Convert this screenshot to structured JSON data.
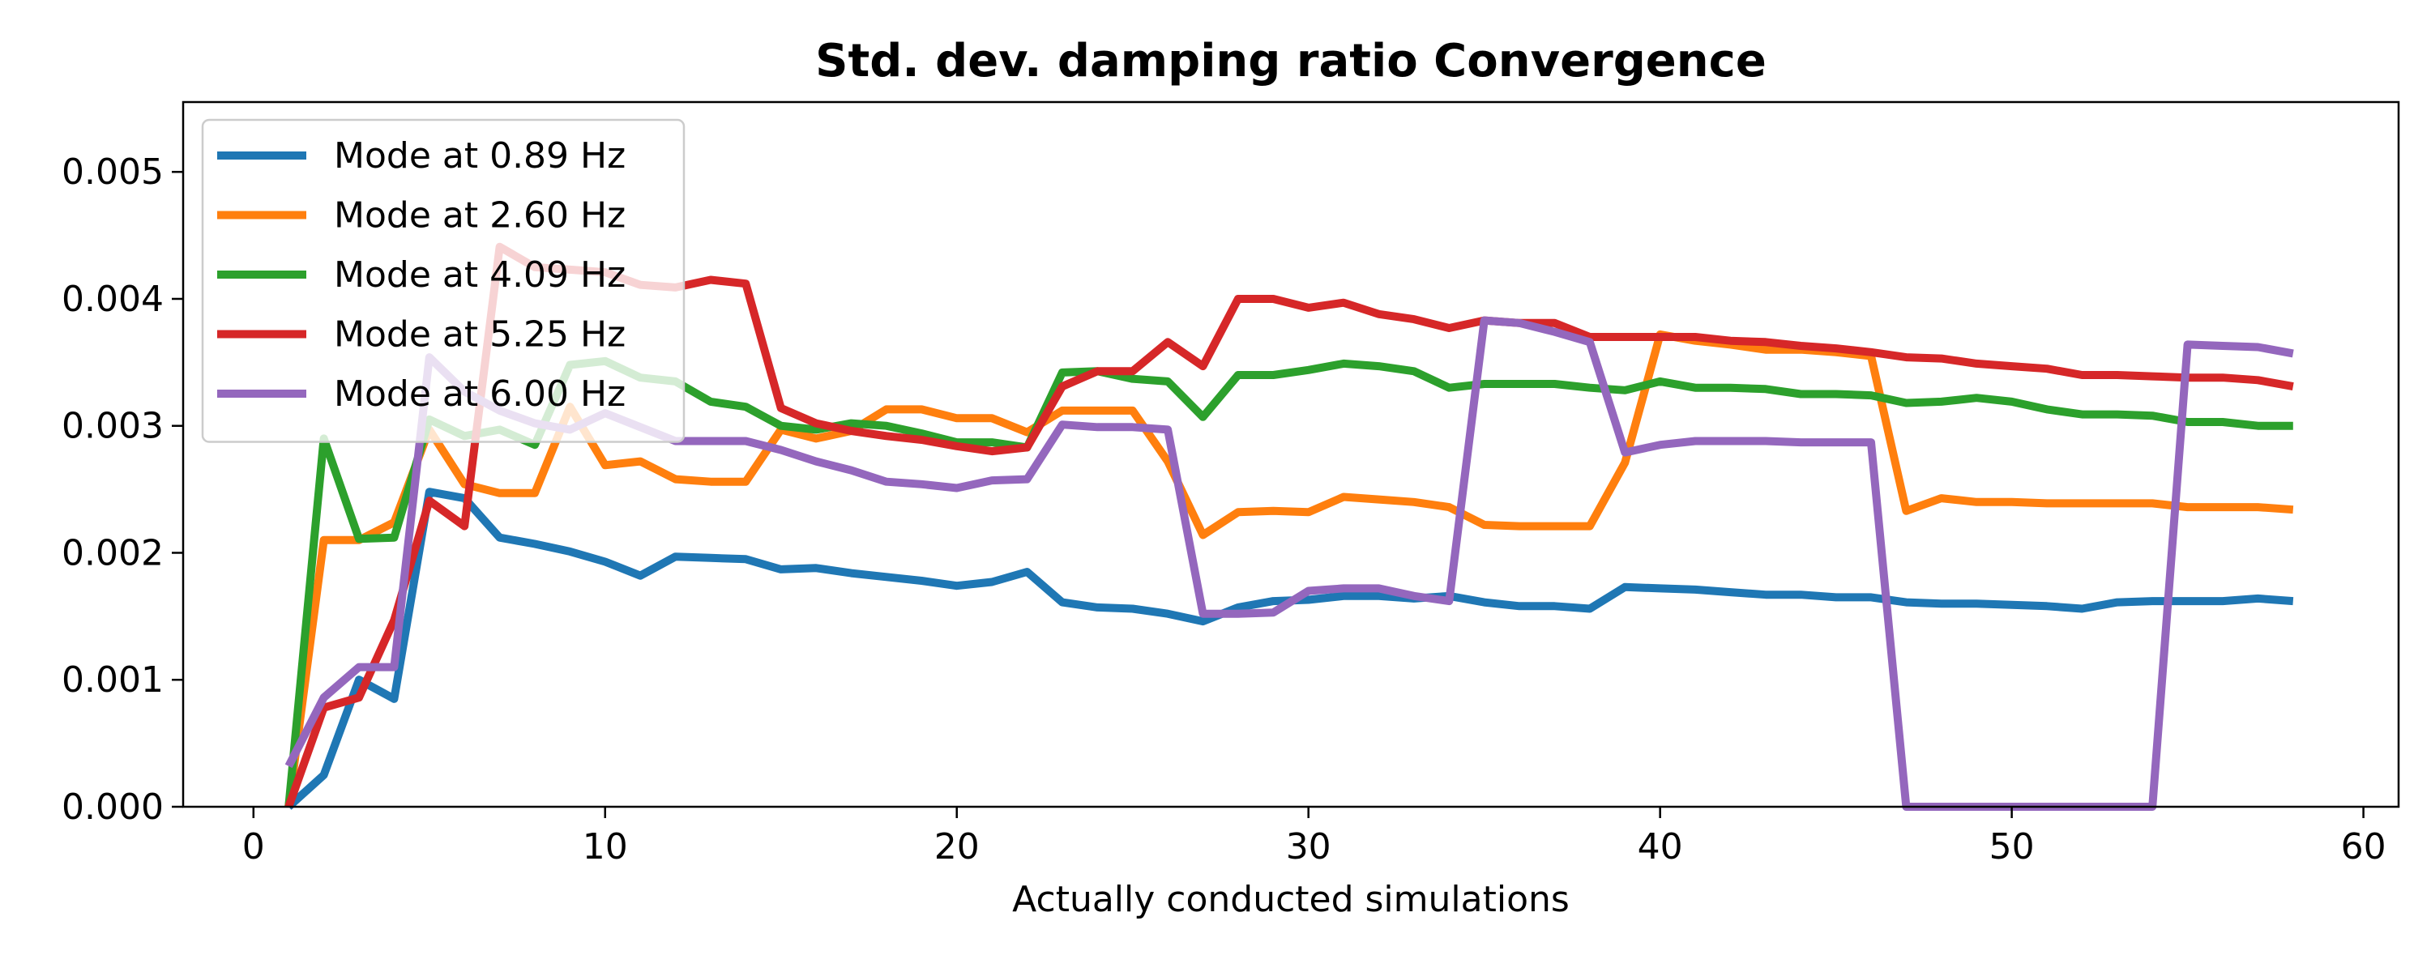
{
  "chart_data": {
    "type": "line",
    "title": "Std. dev. damping ratio Convergence",
    "xlabel": "Actually conducted simulations",
    "ylabel": "",
    "xlim": [
      -2,
      61
    ],
    "ylim": [
      0,
      0.00555
    ],
    "xticks": [
      0,
      10,
      20,
      30,
      40,
      50,
      60
    ],
    "yticks": [
      0.0,
      0.001,
      0.002,
      0.003,
      0.004,
      0.005
    ],
    "ytick_labels": [
      "0.000",
      "0.001",
      "0.002",
      "0.003",
      "0.004",
      "0.005"
    ],
    "legend_position": "top-left",
    "grid": false,
    "x": [
      1,
      2,
      3,
      4,
      5,
      6,
      7,
      8,
      9,
      10,
      11,
      12,
      13,
      14,
      15,
      16,
      17,
      18,
      19,
      20,
      21,
      22,
      23,
      24,
      25,
      26,
      27,
      28,
      29,
      30,
      31,
      32,
      33,
      34,
      35,
      36,
      37,
      38,
      39,
      40,
      41,
      42,
      43,
      44,
      45,
      46,
      47,
      48,
      49,
      50,
      51,
      52,
      53,
      54,
      55,
      56,
      57,
      58
    ],
    "series": [
      {
        "name": "Mode at 0.89 Hz",
        "color": "#1f77b4",
        "values": [
          0.0,
          0.00025,
          0.001,
          0.00085,
          0.00248,
          0.00243,
          0.00212,
          0.00207,
          0.00201,
          0.00193,
          0.00182,
          0.00197,
          0.00196,
          0.00195,
          0.00187,
          0.00188,
          0.00184,
          0.00181,
          0.00178,
          0.00174,
          0.00177,
          0.00185,
          0.00161,
          0.00157,
          0.00156,
          0.00152,
          0.00146,
          0.00157,
          0.00162,
          0.00163,
          0.00166,
          0.00166,
          0.00164,
          0.00166,
          0.00161,
          0.00158,
          0.00158,
          0.00156,
          0.00173,
          0.00172,
          0.00171,
          0.00169,
          0.00167,
          0.00167,
          0.00165,
          0.00165,
          0.00161,
          0.0016,
          0.0016,
          0.00159,
          0.00158,
          0.00156,
          0.00161,
          0.00162,
          0.00162,
          0.00162,
          0.00164,
          0.00162
        ]
      },
      {
        "name": "Mode at 2.60 Hz",
        "color": "#ff7f0e",
        "values": [
          0.0,
          0.0021,
          0.0021,
          0.00224,
          0.00297,
          0.00254,
          0.00247,
          0.00247,
          0.00315,
          0.00269,
          0.00272,
          0.00258,
          0.00256,
          0.00256,
          0.00297,
          0.0029,
          0.00296,
          0.00313,
          0.00313,
          0.00306,
          0.00306,
          0.00295,
          0.00312,
          0.00312,
          0.00312,
          0.00272,
          0.00214,
          0.00232,
          0.00233,
          0.00232,
          0.00244,
          0.00242,
          0.0024,
          0.00236,
          0.00222,
          0.00221,
          0.00221,
          0.00221,
          0.00271,
          0.00372,
          0.00367,
          0.00364,
          0.0036,
          0.0036,
          0.00358,
          0.00355,
          0.00233,
          0.00243,
          0.0024,
          0.0024,
          0.00239,
          0.00239,
          0.00239,
          0.00239,
          0.00236,
          0.00236,
          0.00236,
          0.00234
        ]
      },
      {
        "name": "Mode at 4.09 Hz",
        "color": "#2ca02c",
        "values": [
          0.0,
          0.0029,
          0.00211,
          0.00212,
          0.00305,
          0.00292,
          0.00297,
          0.00285,
          0.00348,
          0.00351,
          0.00338,
          0.00335,
          0.00319,
          0.00315,
          0.003,
          0.00297,
          0.00302,
          0.003,
          0.00294,
          0.00287,
          0.00287,
          0.00283,
          0.00342,
          0.00343,
          0.00337,
          0.00335,
          0.00307,
          0.0034,
          0.0034,
          0.00344,
          0.00349,
          0.00347,
          0.00343,
          0.0033,
          0.00333,
          0.00333,
          0.00333,
          0.0033,
          0.00328,
          0.00335,
          0.0033,
          0.0033,
          0.00329,
          0.00325,
          0.00325,
          0.00324,
          0.00318,
          0.00319,
          0.00322,
          0.00319,
          0.00313,
          0.00309,
          0.00309,
          0.00308,
          0.00303,
          0.00303,
          0.003,
          0.003
        ]
      },
      {
        "name": "Mode at 5.25 Hz",
        "color": "#d62728",
        "values": [
          0.0,
          0.00078,
          0.00086,
          0.00147,
          0.00241,
          0.00221,
          0.00441,
          0.00425,
          0.00423,
          0.00421,
          0.00411,
          0.00409,
          0.00415,
          0.00412,
          0.00314,
          0.00302,
          0.00296,
          0.00292,
          0.00289,
          0.00284,
          0.0028,
          0.00283,
          0.00331,
          0.00343,
          0.00343,
          0.00366,
          0.00347,
          0.004,
          0.004,
          0.00393,
          0.00397,
          0.00388,
          0.00384,
          0.00377,
          0.00383,
          0.00381,
          0.00381,
          0.0037,
          0.0037,
          0.0037,
          0.0037,
          0.00367,
          0.00366,
          0.00363,
          0.00361,
          0.00358,
          0.00354,
          0.00353,
          0.00349,
          0.00347,
          0.00345,
          0.0034,
          0.0034,
          0.00339,
          0.00338,
          0.00338,
          0.00336,
          0.00331
        ]
      },
      {
        "name": "Mode at 6.00 Hz",
        "color": "#9467bd",
        "values": [
          0.00032,
          0.00086,
          0.0011,
          0.0011,
          0.00354,
          0.00327,
          0.00312,
          0.00302,
          0.00297,
          0.0031,
          0.00299,
          0.00288,
          0.00288,
          0.00288,
          0.00281,
          0.00272,
          0.00265,
          0.00256,
          0.00254,
          0.00251,
          0.00257,
          0.00258,
          0.00301,
          0.00299,
          0.00299,
          0.00297,
          0.00152,
          0.00152,
          0.00153,
          0.0017,
          0.00172,
          0.00172,
          0.00166,
          0.00162,
          0.00383,
          0.00381,
          0.00374,
          0.00366,
          0.00279,
          0.00285,
          0.00288,
          0.00288,
          0.00288,
          0.00287,
          0.00287,
          0.00287,
          0.0,
          0.0,
          0.0,
          0.0,
          0.0,
          0.0,
          0.0,
          0.0,
          0.00364,
          0.00363,
          0.00362,
          0.00357
        ]
      }
    ]
  }
}
